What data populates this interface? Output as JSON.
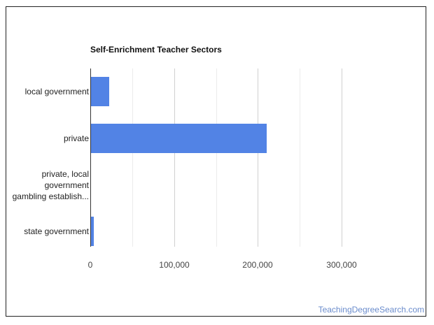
{
  "chart_data": {
    "type": "bar",
    "orientation": "horizontal",
    "title": "Self-Enrichment Teacher Sectors",
    "categories": [
      "local government",
      "private",
      "private, local government gambling establish...",
      "state government"
    ],
    "category_lines": [
      [
        "local government"
      ],
      [
        "private"
      ],
      [
        "private, local",
        "government",
        "gambling establish..."
      ],
      [
        "state government"
      ]
    ],
    "values": [
      22600,
      211000,
      800,
      4200
    ],
    "xlabel": "",
    "ylabel": "",
    "xlim": [
      0,
      300000
    ],
    "xticks": [
      "0",
      "100,000",
      "200,000",
      "300,000"
    ],
    "grid": true,
    "legend": "none",
    "bar_color": "#5283e5"
  },
  "credit": "TeachingDegreeSearch.com"
}
